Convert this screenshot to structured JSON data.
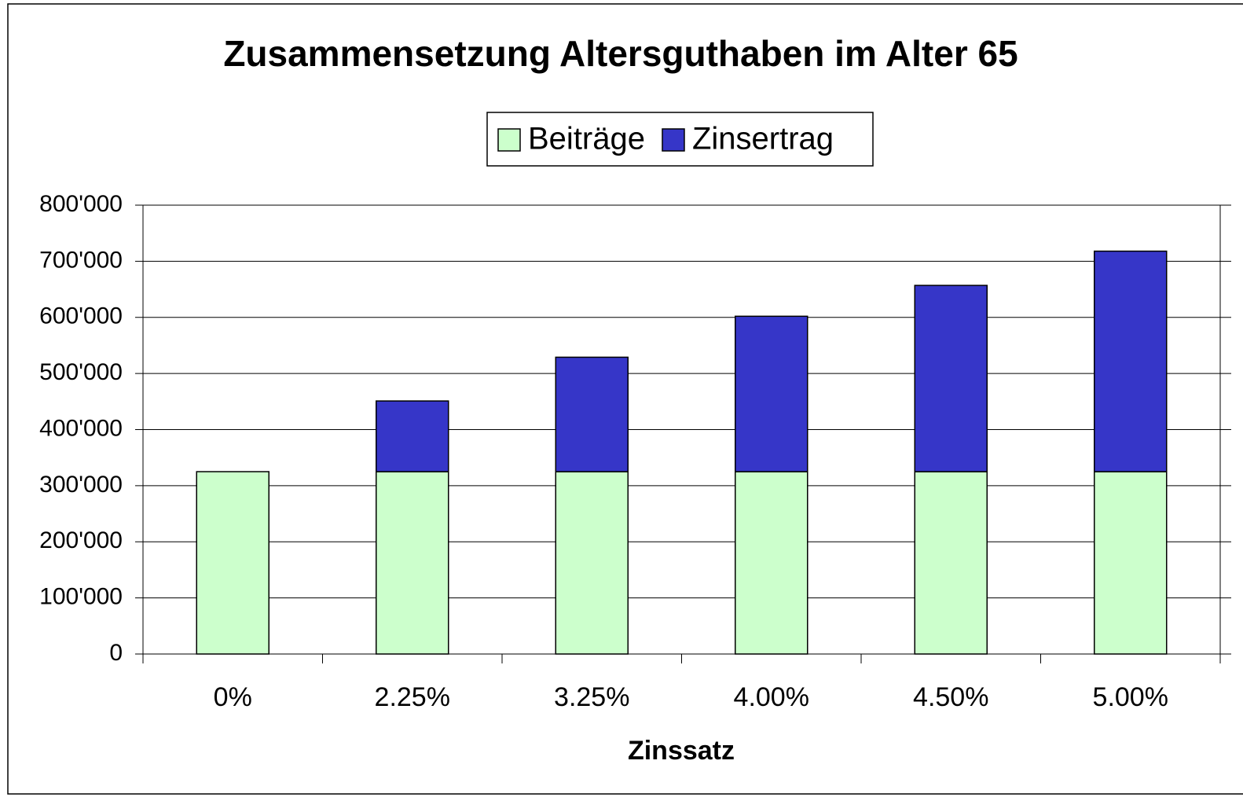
{
  "chart_data": {
    "type": "stacked_bar",
    "title": "Zusammensetzung Altersguthaben im Alter 65",
    "x_label": "Zinssatz",
    "categories": [
      "0%",
      "2.25%",
      "3.25%",
      "4.00%",
      "4.50%",
      "5.00%"
    ],
    "series": [
      {
        "name": "Beiträge",
        "color": "#ccffcc",
        "values": [
          325000,
          325000,
          325000,
          325000,
          325000,
          325000
        ]
      },
      {
        "name": "Zinsertrag",
        "color": "#3636c8",
        "values": [
          0,
          126000,
          204000,
          277000,
          332000,
          393000
        ]
      }
    ],
    "ylim": [
      0,
      800000
    ],
    "yticks": [
      0,
      {
        "value": 100000,
        "label": "100'000"
      },
      {
        "value": 200000,
        "label": "200'000"
      },
      {
        "value": 300000,
        "label": "300'000"
      },
      {
        "value": 400000,
        "label": "400'000"
      },
      {
        "value": 500000,
        "label": "500'000"
      },
      {
        "value": 600000,
        "label": "600'000"
      },
      {
        "value": 700000,
        "label": "700'000"
      },
      {
        "value": 800000,
        "label": "800'000"
      }
    ],
    "grid": true,
    "legend": "top"
  }
}
